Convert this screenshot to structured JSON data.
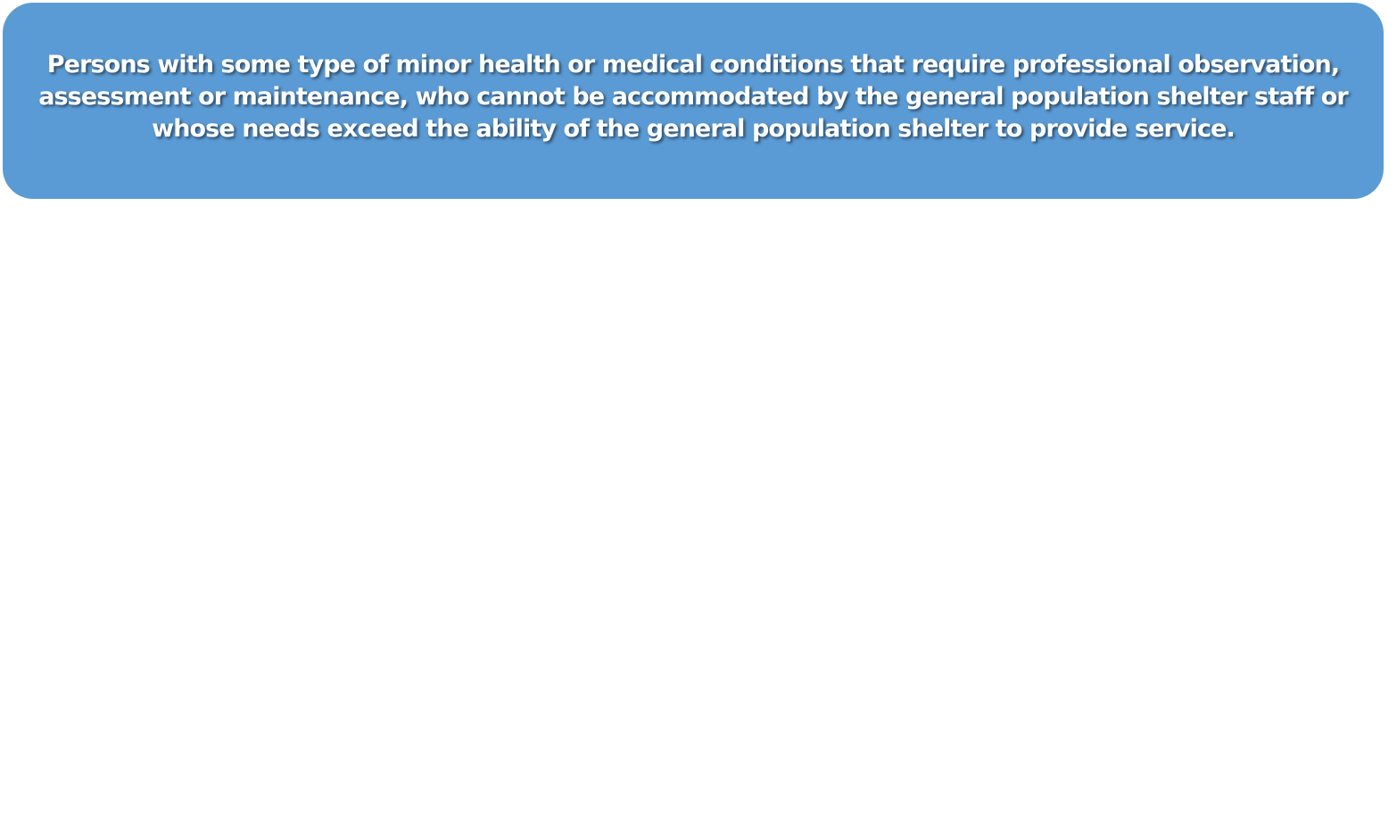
{
  "box": {
    "text": "Persons with some type of minor health or medical conditions that require professional observation, assessment or maintenance, who cannot be accommodated by the general population shelter staff or whose needs exceed the ability of the general population shelter to provide service.",
    "fill_color": "#5b9bd5",
    "text_color": "#ffffff"
  }
}
